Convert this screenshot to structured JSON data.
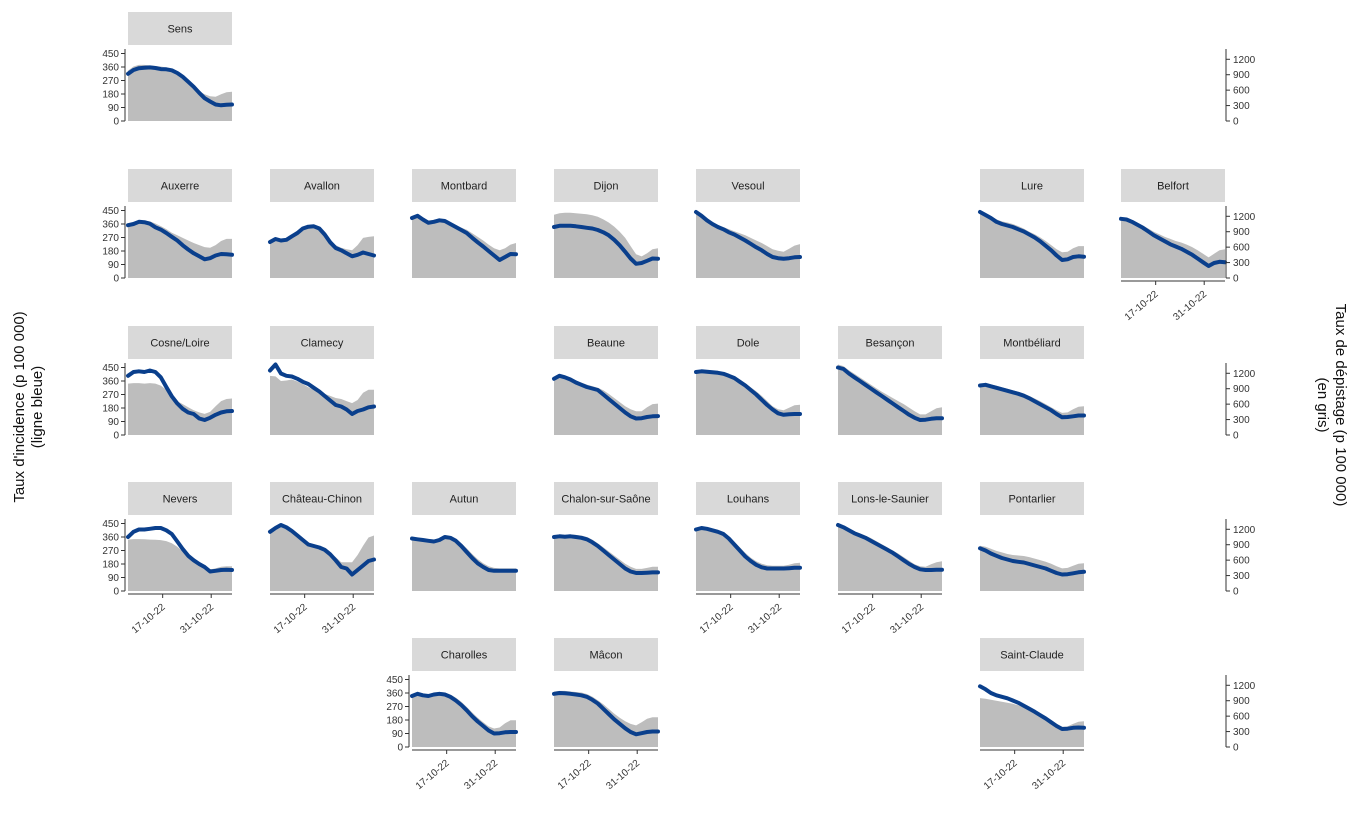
{
  "chart_data": {
    "type": "area",
    "title": "",
    "ylabel_left": [
      "Taux d'incidence (p 100 000)",
      "(ligne bleue)"
    ],
    "ylabel_right": [
      "Taux de dépistage (p 100 000)",
      "(en gris)"
    ],
    "x_ticks": [
      "17-10-22",
      "31-10-22"
    ],
    "x_ticks_day": [
      10,
      24
    ],
    "x_range_day": [
      0,
      30
    ],
    "x_start_date": "2022-10-07",
    "ylim_left": [
      0,
      480
    ],
    "y_ticks_left": [
      0,
      90,
      180,
      270,
      360,
      450
    ],
    "ylim_right": [
      0,
      1400
    ],
    "y_ticks_right": [
      0,
      300,
      600,
      900,
      1200
    ],
    "colors": {
      "incidence": "#0a3f8c",
      "screening": "#bdbdbd",
      "strip": "#d9d9d9"
    },
    "series_meaning": {
      "line": "incidence",
      "area": "screening"
    },
    "panels": [
      {
        "name": "Sens",
        "row": 0,
        "col": 0,
        "incidence": [
          315,
          340,
          352,
          355,
          357,
          353,
          346,
          345,
          338,
          320,
          295,
          262,
          228,
          188,
          152,
          130,
          110,
          105,
          108,
          110
        ],
        "screening": [
          980,
          1060,
          1090,
          1090,
          1080,
          1070,
          1060,
          1040,
          1010,
          960,
          900,
          790,
          680,
          580,
          520,
          480,
          470,
          520,
          560,
          570
        ]
      },
      {
        "name": "Auxerre",
        "row": 1,
        "col": 0,
        "incidence": [
          352,
          360,
          375,
          372,
          362,
          338,
          323,
          300,
          275,
          250,
          218,
          190,
          165,
          145,
          125,
          132,
          150,
          160,
          158,
          155
        ],
        "screening": [
          1050,
          1090,
          1110,
          1110,
          1100,
          1060,
          1010,
          950,
          880,
          830,
          780,
          730,
          680,
          640,
          600,
          590,
          640,
          720,
          760,
          760
        ]
      },
      {
        "name": "Avallon",
        "row": 1,
        "col": 1,
        "incidence": [
          240,
          260,
          250,
          255,
          278,
          300,
          330,
          342,
          345,
          330,
          290,
          238,
          200,
          185,
          165,
          145,
          155,
          170,
          160,
          150
        ],
        "screening": [
          700,
          760,
          730,
          740,
          810,
          880,
          960,
          1000,
          1000,
          960,
          870,
          740,
          640,
          590,
          560,
          540,
          640,
          780,
          800,
          810
        ]
      },
      {
        "name": "Montbard",
        "row": 1,
        "col": 2,
        "incidence": [
          400,
          415,
          390,
          368,
          375,
          385,
          380,
          360,
          340,
          320,
          300,
          268,
          238,
          210,
          180,
          150,
          120,
          140,
          160,
          158
        ],
        "screening": [
          1150,
          1210,
          1170,
          1120,
          1130,
          1150,
          1130,
          1080,
          1020,
          980,
          940,
          870,
          800,
          730,
          650,
          580,
          540,
          580,
          650,
          680
        ]
      },
      {
        "name": "Dijon",
        "row": 1,
        "col": 3,
        "incidence": [
          340,
          348,
          348,
          348,
          345,
          340,
          335,
          330,
          320,
          305,
          285,
          255,
          218,
          175,
          130,
          95,
          100,
          115,
          130,
          128
        ],
        "screening": [
          1230,
          1260,
          1270,
          1270,
          1260,
          1250,
          1240,
          1220,
          1190,
          1140,
          1080,
          1000,
          900,
          780,
          620,
          460,
          420,
          480,
          560,
          580
        ]
      },
      {
        "name": "Vesoul",
        "row": 1,
        "col": 4,
        "incidence": [
          440,
          415,
          385,
          360,
          340,
          325,
          305,
          290,
          270,
          250,
          228,
          205,
          185,
          160,
          140,
          132,
          128,
          132,
          138,
          140
        ],
        "screening": [
          1280,
          1220,
          1150,
          1080,
          1030,
          990,
          950,
          910,
          870,
          830,
          780,
          730,
          680,
          620,
          560,
          530,
          510,
          570,
          630,
          660
        ]
      },
      {
        "name": "Lure",
        "row": 1,
        "col": 6,
        "incidence": [
          440,
          420,
          400,
          375,
          360,
          350,
          340,
          325,
          310,
          290,
          270,
          245,
          215,
          185,
          150,
          120,
          125,
          140,
          145,
          142
        ],
        "screening": [
          1300,
          1250,
          1200,
          1140,
          1100,
          1080,
          1050,
          1010,
          960,
          900,
          850,
          790,
          720,
          640,
          560,
          500,
          510,
          580,
          620,
          620
        ]
      },
      {
        "name": "Belfort",
        "row": 1,
        "col": 7,
        "incidence": [
          395,
          390,
          375,
          355,
          335,
          310,
          285,
          265,
          245,
          225,
          210,
          195,
          175,
          155,
          130,
          105,
          80,
          100,
          108,
          105
        ],
        "screening": [
          1150,
          1140,
          1110,
          1070,
          1020,
          960,
          900,
          850,
          800,
          760,
          720,
          690,
          650,
          600,
          540,
          470,
          400,
          470,
          540,
          560
        ]
      },
      {
        "name": "Cosne/Loire",
        "row": 2,
        "col": 0,
        "incidence": [
          395,
          420,
          425,
          420,
          430,
          420,
          385,
          320,
          258,
          210,
          175,
          150,
          140,
          110,
          100,
          115,
          135,
          150,
          158,
          160
        ],
        "screening": [
          1000,
          1010,
          1010,
          1000,
          1010,
          1000,
          960,
          880,
          760,
          660,
          600,
          540,
          480,
          440,
          410,
          450,
          560,
          660,
          700,
          710
        ]
      },
      {
        "name": "Clamecy",
        "row": 2,
        "col": 1,
        "incidence": [
          430,
          470,
          410,
          395,
          390,
          375,
          355,
          340,
          315,
          290,
          260,
          230,
          200,
          190,
          170,
          140,
          160,
          170,
          185,
          190
        ],
        "screening": [
          1150,
          1140,
          1050,
          1060,
          1080,
          1040,
          990,
          930,
          880,
          840,
          800,
          760,
          720,
          700,
          660,
          620,
          680,
          820,
          880,
          880
        ]
      },
      {
        "name": "Beaune",
        "row": 2,
        "col": 3,
        "incidence": [
          375,
          395,
          385,
          370,
          350,
          335,
          320,
          310,
          300,
          270,
          240,
          210,
          180,
          150,
          125,
          110,
          112,
          120,
          125,
          126
        ],
        "screening": [
          1100,
          1150,
          1130,
          1100,
          1060,
          1020,
          980,
          950,
          920,
          870,
          800,
          720,
          640,
          560,
          500,
          460,
          460,
          540,
          600,
          610
        ]
      },
      {
        "name": "Dole",
        "row": 2,
        "col": 4,
        "incidence": [
          420,
          425,
          422,
          418,
          415,
          408,
          395,
          380,
          355,
          330,
          300,
          270,
          235,
          200,
          170,
          145,
          135,
          138,
          140,
          140
        ],
        "screening": [
          1250,
          1260,
          1250,
          1240,
          1230,
          1210,
          1180,
          1140,
          1080,
          1010,
          930,
          850,
          760,
          660,
          560,
          500,
          480,
          530,
          580,
          590
        ]
      },
      {
        "name": "Besançon",
        "row": 2,
        "col": 5,
        "incidence": [
          450,
          440,
          410,
          385,
          360,
          335,
          310,
          285,
          260,
          235,
          210,
          185,
          160,
          135,
          115,
          100,
          102,
          108,
          112,
          112
        ],
        "screening": [
          1370,
          1340,
          1260,
          1190,
          1120,
          1050,
          980,
          910,
          840,
          780,
          720,
          660,
          600,
          530,
          460,
          400,
          400,
          460,
          520,
          540
        ]
      },
      {
        "name": "Montbéliard",
        "row": 2,
        "col": 6,
        "incidence": [
          330,
          335,
          325,
          315,
          305,
          295,
          285,
          275,
          262,
          245,
          225,
          205,
          185,
          165,
          140,
          118,
          120,
          125,
          130,
          130
        ],
        "screening": [
          990,
          1000,
          980,
          960,
          930,
          900,
          870,
          840,
          800,
          760,
          710,
          660,
          600,
          540,
          480,
          430,
          440,
          500,
          550,
          560
        ]
      },
      {
        "name": "Nevers",
        "row": 3,
        "col": 0,
        "incidence": [
          360,
          395,
          410,
          410,
          415,
          420,
          420,
          405,
          380,
          330,
          280,
          235,
          205,
          180,
          160,
          130,
          135,
          140,
          142,
          140
        ],
        "screening": [
          1000,
          1010,
          1010,
          1005,
          1000,
          995,
          990,
          970,
          930,
          860,
          770,
          680,
          600,
          520,
          470,
          420,
          440,
          470,
          480,
          480
        ]
      },
      {
        "name": "Château-Chinon",
        "row": 3,
        "col": 1,
        "incidence": [
          395,
          420,
          440,
          425,
          400,
          370,
          340,
          310,
          300,
          290,
          275,
          245,
          205,
          160,
          150,
          110,
          140,
          170,
          200,
          210
        ],
        "screening": [
          1120,
          1180,
          1240,
          1200,
          1140,
          1070,
          990,
          900,
          860,
          830,
          800,
          740,
          660,
          560,
          560,
          560,
          700,
          880,
          1040,
          1080
        ]
      },
      {
        "name": "Autun",
        "row": 3,
        "col": 2,
        "incidence": [
          350,
          345,
          340,
          335,
          330,
          340,
          360,
          355,
          335,
          300,
          260,
          220,
          185,
          160,
          140,
          135,
          135,
          135,
          135,
          135
        ],
        "screening": [
          1040,
          1030,
          1020,
          1010,
          1000,
          1010,
          1060,
          1060,
          1010,
          930,
          830,
          720,
          620,
          540,
          480,
          450,
          440,
          440,
          440,
          440
        ]
      },
      {
        "name": "Chalon-sur-Saône",
        "row": 3,
        "col": 3,
        "incidence": [
          360,
          365,
          362,
          365,
          360,
          355,
          345,
          325,
          300,
          270,
          240,
          210,
          180,
          150,
          130,
          120,
          120,
          122,
          124,
          124
        ],
        "screening": [
          1080,
          1100,
          1090,
          1100,
          1090,
          1080,
          1050,
          1000,
          930,
          850,
          770,
          690,
          610,
          530,
          470,
          430,
          430,
          450,
          470,
          470
        ]
      },
      {
        "name": "Louhans",
        "row": 3,
        "col": 4,
        "incidence": [
          410,
          420,
          415,
          405,
          395,
          380,
          350,
          310,
          270,
          230,
          200,
          175,
          158,
          150,
          150,
          150,
          150,
          152,
          155,
          155
        ],
        "screening": [
          1220,
          1240,
          1230,
          1210,
          1180,
          1140,
          1060,
          960,
          850,
          740,
          650,
          580,
          530,
          500,
          490,
          490,
          490,
          510,
          540,
          550
        ]
      },
      {
        "name": "Lons-le-Saunier",
        "row": 3,
        "col": 5,
        "incidence": [
          440,
          425,
          405,
          385,
          370,
          355,
          335,
          315,
          295,
          275,
          255,
          230,
          205,
          180,
          160,
          145,
          140,
          140,
          142,
          142
        ],
        "screening": [
          1300,
          1260,
          1210,
          1160,
          1120,
          1080,
          1030,
          970,
          910,
          850,
          790,
          730,
          660,
          590,
          520,
          480,
          470,
          520,
          560,
          580
        ]
      },
      {
        "name": "Pontarlier",
        "row": 3,
        "col": 6,
        "incidence": [
          285,
          270,
          250,
          235,
          220,
          210,
          200,
          195,
          190,
          180,
          170,
          160,
          150,
          135,
          120,
          110,
          112,
          118,
          125,
          128
        ],
        "screening": [
          880,
          860,
          820,
          780,
          750,
          720,
          700,
          690,
          680,
          660,
          630,
          600,
          570,
          530,
          480,
          440,
          450,
          490,
          530,
          540
        ]
      },
      {
        "name": "Charolles",
        "row": 4,
        "col": 2,
        "incidence": [
          340,
          355,
          345,
          340,
          350,
          355,
          350,
          335,
          310,
          280,
          245,
          205,
          170,
          140,
          110,
          90,
          92,
          98,
          100,
          100
        ],
        "screening": [
          1020,
          1060,
          1030,
          1020,
          1050,
          1070,
          1060,
          1020,
          960,
          880,
          780,
          670,
          570,
          480,
          400,
          360,
          380,
          460,
          520,
          520
        ]
      },
      {
        "name": "Mâcon",
        "row": 4,
        "col": 3,
        "incidence": [
          355,
          360,
          358,
          355,
          350,
          345,
          335,
          315,
          290,
          255,
          220,
          185,
          155,
          125,
          100,
          85,
          92,
          100,
          103,
          103
        ],
        "screening": [
          1080,
          1090,
          1090,
          1080,
          1070,
          1060,
          1030,
          980,
          910,
          830,
          740,
          650,
          570,
          500,
          450,
          420,
          480,
          550,
          580,
          580
        ]
      },
      {
        "name": "Saint-Claude",
        "row": 4,
        "col": 6,
        "incidence": [
          405,
          385,
          360,
          345,
          335,
          325,
          310,
          295,
          275,
          255,
          235,
          212,
          190,
          165,
          140,
          120,
          122,
          128,
          130,
          128
        ],
        "screening": [
          950,
          940,
          920,
          900,
          880,
          860,
          840,
          810,
          770,
          720,
          670,
          620,
          560,
          500,
          440,
          390,
          400,
          450,
          490,
          500
        ]
      }
    ]
  }
}
